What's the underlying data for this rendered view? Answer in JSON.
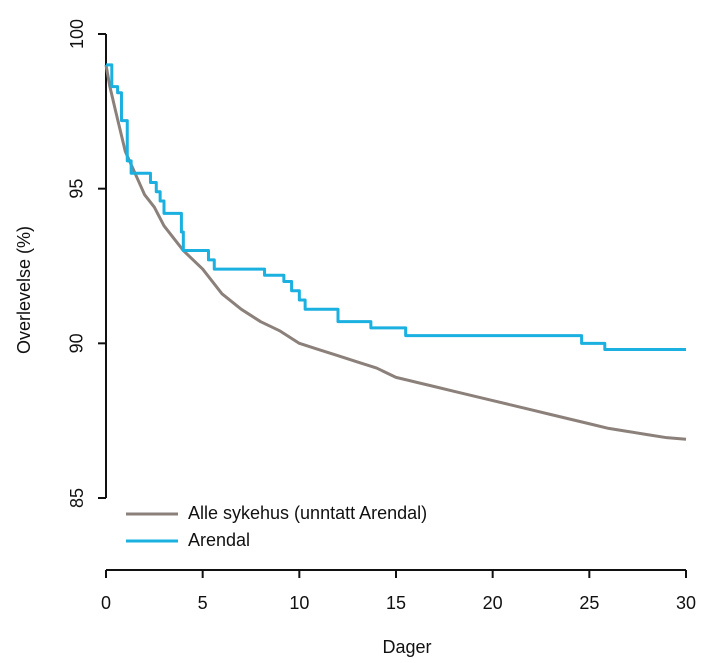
{
  "chart_data": {
    "type": "line",
    "xlabel": "Dager",
    "ylabel": "Overlevelse (%)",
    "xlim": [
      0,
      30
    ],
    "xticks": [
      0,
      5,
      10,
      15,
      20,
      25,
      30
    ],
    "ylim": [
      85,
      100
    ],
    "yticks": [
      85,
      90,
      95,
      100
    ],
    "legend": "bottom-left",
    "series": [
      {
        "name": "Alle sykehus (unntatt Arendal)",
        "color": "#8b807a",
        "drawstyle": "line",
        "x": [
          0,
          0.2,
          0.5,
          1,
          1.5,
          2,
          2.5,
          3,
          3.5,
          4,
          4.5,
          5,
          5.5,
          6,
          7,
          8,
          9,
          10,
          11,
          12,
          13,
          14,
          15,
          16,
          17,
          18,
          19,
          20,
          21,
          22,
          23,
          24,
          25,
          26,
          27,
          28,
          29,
          30
        ],
        "values": [
          99.0,
          98.3,
          97.5,
          96.2,
          95.5,
          94.8,
          94.4,
          93.8,
          93.4,
          93.0,
          92.7,
          92.4,
          92.0,
          91.6,
          91.1,
          90.7,
          90.4,
          90.0,
          89.8,
          89.6,
          89.4,
          89.2,
          88.9,
          88.75,
          88.6,
          88.45,
          88.3,
          88.15,
          88.0,
          87.85,
          87.7,
          87.55,
          87.4,
          87.25,
          87.15,
          87.05,
          86.95,
          86.9
        ]
      },
      {
        "name": "Arendal",
        "color": "#1ab0e0",
        "drawstyle": "steps-post",
        "x": [
          0,
          0.3,
          0.6,
          0.8,
          1.1,
          1.3,
          2.3,
          2.6,
          2.8,
          3.0,
          3.9,
          4.0,
          5.3,
          5.6,
          8.2,
          9.2,
          9.6,
          10.0,
          10.3,
          12.0,
          13.7,
          15.5,
          24.6,
          25.8,
          30
        ],
        "values": [
          99.0,
          98.3,
          98.1,
          97.2,
          95.9,
          95.5,
          95.2,
          94.9,
          94.6,
          94.2,
          93.6,
          93.0,
          92.7,
          92.4,
          92.2,
          92.0,
          91.7,
          91.4,
          91.1,
          90.7,
          90.5,
          90.25,
          90.0,
          89.8,
          89.8
        ]
      }
    ]
  }
}
